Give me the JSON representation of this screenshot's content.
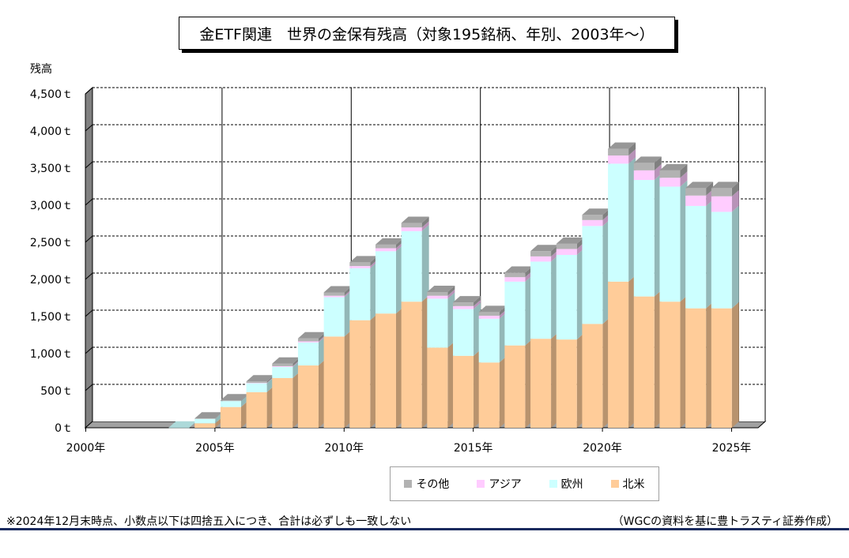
{
  "title": "金ETF関連　世界の金保有残高（対象195銘柄、年別、2003年～）",
  "footnote": "※2024年12月末時点、小数点以下は四捨五入につき、合計は必ずしも一致しない",
  "source": "（WGCの資料を基に豊トラスティ証券作成）",
  "chart_data": {
    "type": "bar",
    "stacked": true,
    "three_d": true,
    "ylabel": "残高",
    "ylim": [
      0,
      4500
    ],
    "yticks": [
      "0ｔ",
      "500ｔ",
      "1,000ｔ",
      "1,500ｔ",
      "2,000ｔ",
      "2,500ｔ",
      "3,000ｔ",
      "3,500ｔ",
      "4,000ｔ",
      "4,500ｔ"
    ],
    "ytick_values": [
      0,
      500,
      1000,
      1500,
      2000,
      2500,
      3000,
      3500,
      4000,
      4500
    ],
    "xtick_labels": [
      "2000年",
      "2005年",
      "2010年",
      "2015年",
      "2020年",
      "2025年"
    ],
    "xtick_years": [
      2000,
      2005,
      2010,
      2015,
      2020,
      2025
    ],
    "categories": [
      "2003年",
      "2004年",
      "2005年",
      "2006年",
      "2007年",
      "2008年",
      "2009年",
      "2010年",
      "2011年",
      "2012年",
      "2013年",
      "2014年",
      "2015年",
      "2016年",
      "2017年",
      "2018年",
      "2019年",
      "2020年",
      "2021年",
      "2022年",
      "2023年",
      "2024年"
    ],
    "years": [
      2003,
      2004,
      2005,
      2006,
      2007,
      2008,
      2009,
      2010,
      2011,
      2012,
      2013,
      2014,
      2015,
      2016,
      2017,
      2018,
      2019,
      2020,
      2021,
      2022,
      2023,
      2024
    ],
    "grid": true,
    "legend_position": "bottom",
    "series": [
      {
        "name": "北米",
        "color": "#ffcc99",
        "values": [
          0,
          60,
          280,
          480,
          670,
          840,
          1230,
          1450,
          1540,
          1700,
          1080,
          970,
          880,
          1110,
          1200,
          1190,
          1400,
          1970,
          1770,
          1700,
          1610,
          1610
        ]
      },
      {
        "name": "欧州",
        "color": "#ccffff",
        "values": [
          3,
          60,
          80,
          120,
          150,
          310,
          530,
          700,
          840,
          950,
          660,
          630,
          590,
          860,
          1040,
          1140,
          1320,
          1590,
          1570,
          1550,
          1380,
          1300
        ]
      },
      {
        "name": "アジア",
        "color": "#ffccff",
        "values": [
          0,
          0,
          0,
          5,
          10,
          15,
          20,
          30,
          40,
          50,
          40,
          40,
          40,
          60,
          70,
          80,
          80,
          110,
          130,
          120,
          140,
          210
        ]
      },
      {
        "name": "その他",
        "color": "#b2b2b2",
        "values": [
          0,
          5,
          10,
          20,
          35,
          40,
          45,
          50,
          50,
          60,
          50,
          50,
          50,
          60,
          70,
          70,
          70,
          90,
          100,
          100,
          100,
          110
        ]
      }
    ],
    "colors": {
      "wall": "#ffffff",
      "side_wall": "#808080",
      "floor": "#a0a0a0",
      "grid": "#000000"
    }
  }
}
